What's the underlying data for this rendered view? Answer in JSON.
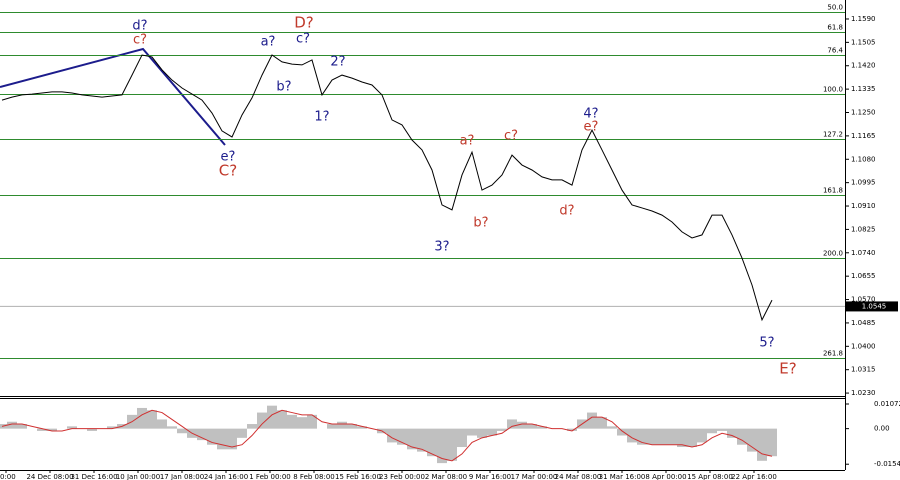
{
  "chart_data": [
    {
      "type": "line",
      "color": "#000000",
      "ylim": [
        1.0223,
        1.1659
      ],
      "yticks": [
        {
          "value": 1.159,
          "label": "1.1590"
        },
        1.1505,
        {
          "value": 1.142,
          "label": "1.1420"
        },
        1.1335,
        {
          "value": 1.125,
          "label": "1.1250"
        },
        1.1165,
        {
          "value": 1.108,
          "label": "1.1080"
        },
        1.0995,
        {
          "value": 1.091,
          "label": "1.0910"
        },
        1.0825,
        {
          "value": 1.074,
          "label": "1.0740"
        },
        1.0655,
        {
          "value": 1.057,
          "label": "1.0570"
        },
        1.0485,
        {
          "value": 1.04,
          "label": "1.0400"
        },
        1.0315,
        {
          "value": 1.023,
          "label": "1.0230"
        }
      ],
      "values": [
        1.1295,
        1.1306,
        1.1314,
        1.1317,
        1.1321,
        1.1325,
        1.1325,
        1.1321,
        1.1314,
        1.131,
        1.1306,
        1.131,
        1.1314,
        1.1386,
        1.1459,
        1.1452,
        1.1405,
        1.1368,
        1.1339,
        1.1317,
        1.1295,
        1.1248,
        1.1183,
        1.1161,
        1.1241,
        1.1303,
        1.1386,
        1.1459,
        1.1434,
        1.1426,
        1.1423,
        1.1441,
        1.1314,
        1.1368,
        1.1386,
        1.1375,
        1.1361,
        1.135,
        1.1314,
        1.1223,
        1.1205,
        1.115,
        1.1114,
        1.1041,
        1.0914,
        1.0896,
        1.1023,
        1.1106,
        1.0968,
        1.0986,
        1.1023,
        1.1095,
        1.1059,
        1.1041,
        1.1016,
        1.1005,
        1.1005,
        1.0986,
        1.1114,
        1.1186,
        1.1114,
        1.1041,
        1.0968,
        1.0914,
        1.0903,
        1.0892,
        1.0877,
        1.0852,
        1.0816,
        1.0794,
        1.0805,
        1.0877,
        1.0877,
        1.0805,
        1.0721,
        1.0623,
        1.0496,
        1.0568
      ],
      "current_price": 1.0545,
      "levels": [
        {
          "label": "50.0",
          "value": 1.1615
        },
        {
          "label": "61.8",
          "value": 1.1543
        },
        {
          "label": "76.4",
          "value": 1.1459
        },
        {
          "label": "100.0",
          "value": 1.1317
        },
        {
          "label": "127.2",
          "value": 1.1154
        },
        {
          "label": "161.8",
          "value": 1.0951
        },
        {
          "label": "200.0",
          "value": 1.0721
        },
        {
          "label": "261.8",
          "value": 1.0358
        }
      ],
      "level_color": "#2e8b2e",
      "annotations": [
        {
          "text": "d?",
          "color": "#1c1c8c"
        },
        {
          "text": "c?",
          "color": "#c0392b"
        },
        {
          "text": "e?",
          "color": "#1c1c8c"
        },
        {
          "text": "C?",
          "color": "#c0392b"
        },
        {
          "text": "a?",
          "color": "#1c1c8c"
        },
        {
          "text": "c?",
          "color": "#1c1c8c"
        },
        {
          "text": "D?",
          "color": "#c0392b"
        },
        {
          "text": "b?",
          "color": "#1c1c8c"
        },
        {
          "text": "2?",
          "color": "#1c1c8c"
        },
        {
          "text": "1?",
          "color": "#1c1c8c"
        },
        {
          "text": "a?",
          "color": "#c0392b"
        },
        {
          "text": "c?",
          "color": "#c0392b"
        },
        {
          "text": "b?",
          "color": "#c0392b"
        },
        {
          "text": "3?",
          "color": "#1c1c8c"
        },
        {
          "text": "d?",
          "color": "#c0392b"
        },
        {
          "text": "4?",
          "color": "#1c1c8c"
        },
        {
          "text": "e?",
          "color": "#c0392b"
        },
        {
          "text": "5?",
          "color": "#1c1c8c"
        },
        {
          "text": "E?",
          "color": "#c0392b"
        }
      ]
    },
    {
      "type": "bar",
      "color": "#c0c0c0",
      "signal_color": "#d03030",
      "ylim": [
        -0.018,
        0.0129
      ],
      "yticks": [
        0.01072,
        {
          "value": 0,
          "label": "0.00"
        },
        -0.01548
      ],
      "values": [
        0.002,
        0.003,
        0.002,
        0.0,
        -0.001,
        -0.001,
        0.0,
        0.001,
        0.0,
        -0.001,
        0.0,
        0.001,
        0.002,
        0.006,
        0.009,
        0.008,
        0.004,
        0.001,
        -0.002,
        -0.004,
        -0.005,
        -0.007,
        -0.009,
        -0.009,
        -0.004,
        0.002,
        0.007,
        0.01,
        0.008,
        0.006,
        0.005,
        0.006,
        0.0,
        0.002,
        0.003,
        0.002,
        0.001,
        0.0,
        -0.002,
        -0.006,
        -0.007,
        -0.009,
        -0.01,
        -0.012,
        -0.015,
        -0.014,
        -0.008,
        -0.003,
        -0.004,
        -0.003,
        -0.001,
        0.004,
        0.003,
        0.002,
        0.001,
        0.0,
        0.0,
        -0.001,
        0.004,
        0.007,
        0.005,
        0.001,
        -0.003,
        -0.006,
        -0.007,
        -0.007,
        -0.007,
        -0.007,
        -0.008,
        -0.008,
        -0.006,
        -0.002,
        -0.001,
        -0.004,
        -0.007,
        -0.01,
        -0.014,
        -0.012
      ],
      "signal": [
        0.001,
        0.002,
        0.002,
        0.001,
        0.0,
        -0.001,
        -0.001,
        0.0,
        0.0,
        0.0,
        0.0,
        0.0,
        0.001,
        0.003,
        0.006,
        0.008,
        0.007,
        0.004,
        0.001,
        -0.002,
        -0.004,
        -0.006,
        -0.007,
        -0.008,
        -0.007,
        -0.003,
        0.002,
        0.006,
        0.008,
        0.007,
        0.006,
        0.006,
        0.003,
        0.002,
        0.002,
        0.002,
        0.001,
        0.0,
        -0.001,
        -0.004,
        -0.006,
        -0.008,
        -0.009,
        -0.011,
        -0.013,
        -0.014,
        -0.011,
        -0.006,
        -0.004,
        -0.003,
        -0.002,
        0.001,
        0.002,
        0.002,
        0.001,
        0.0,
        0.0,
        -0.001,
        0.002,
        0.005,
        0.005,
        0.003,
        -0.001,
        -0.004,
        -0.006,
        -0.007,
        -0.007,
        -0.007,
        -0.007,
        -0.008,
        -0.007,
        -0.004,
        -0.002,
        -0.003,
        -0.005,
        -0.008,
        -0.011,
        -0.012
      ],
      "x_labels": [
        "0:00",
        "24 Dec 08:00",
        "31 Dec 16:00",
        "10 Jan 00:00",
        "17 Jan 08:00",
        "24 Jan 16:00",
        "1 Feb 00:00",
        "8 Feb 08:00",
        "15 Feb 16:00",
        "23 Feb 00:00",
        "2 Mar 08:00",
        "9 Mar 16:00",
        "17 Mar 00:00",
        "24 Mar 08:00",
        "31 Mar 16:00",
        "8 Apr 00:00",
        "15 Apr 08:00",
        "22 Apr 16:00"
      ]
    }
  ]
}
